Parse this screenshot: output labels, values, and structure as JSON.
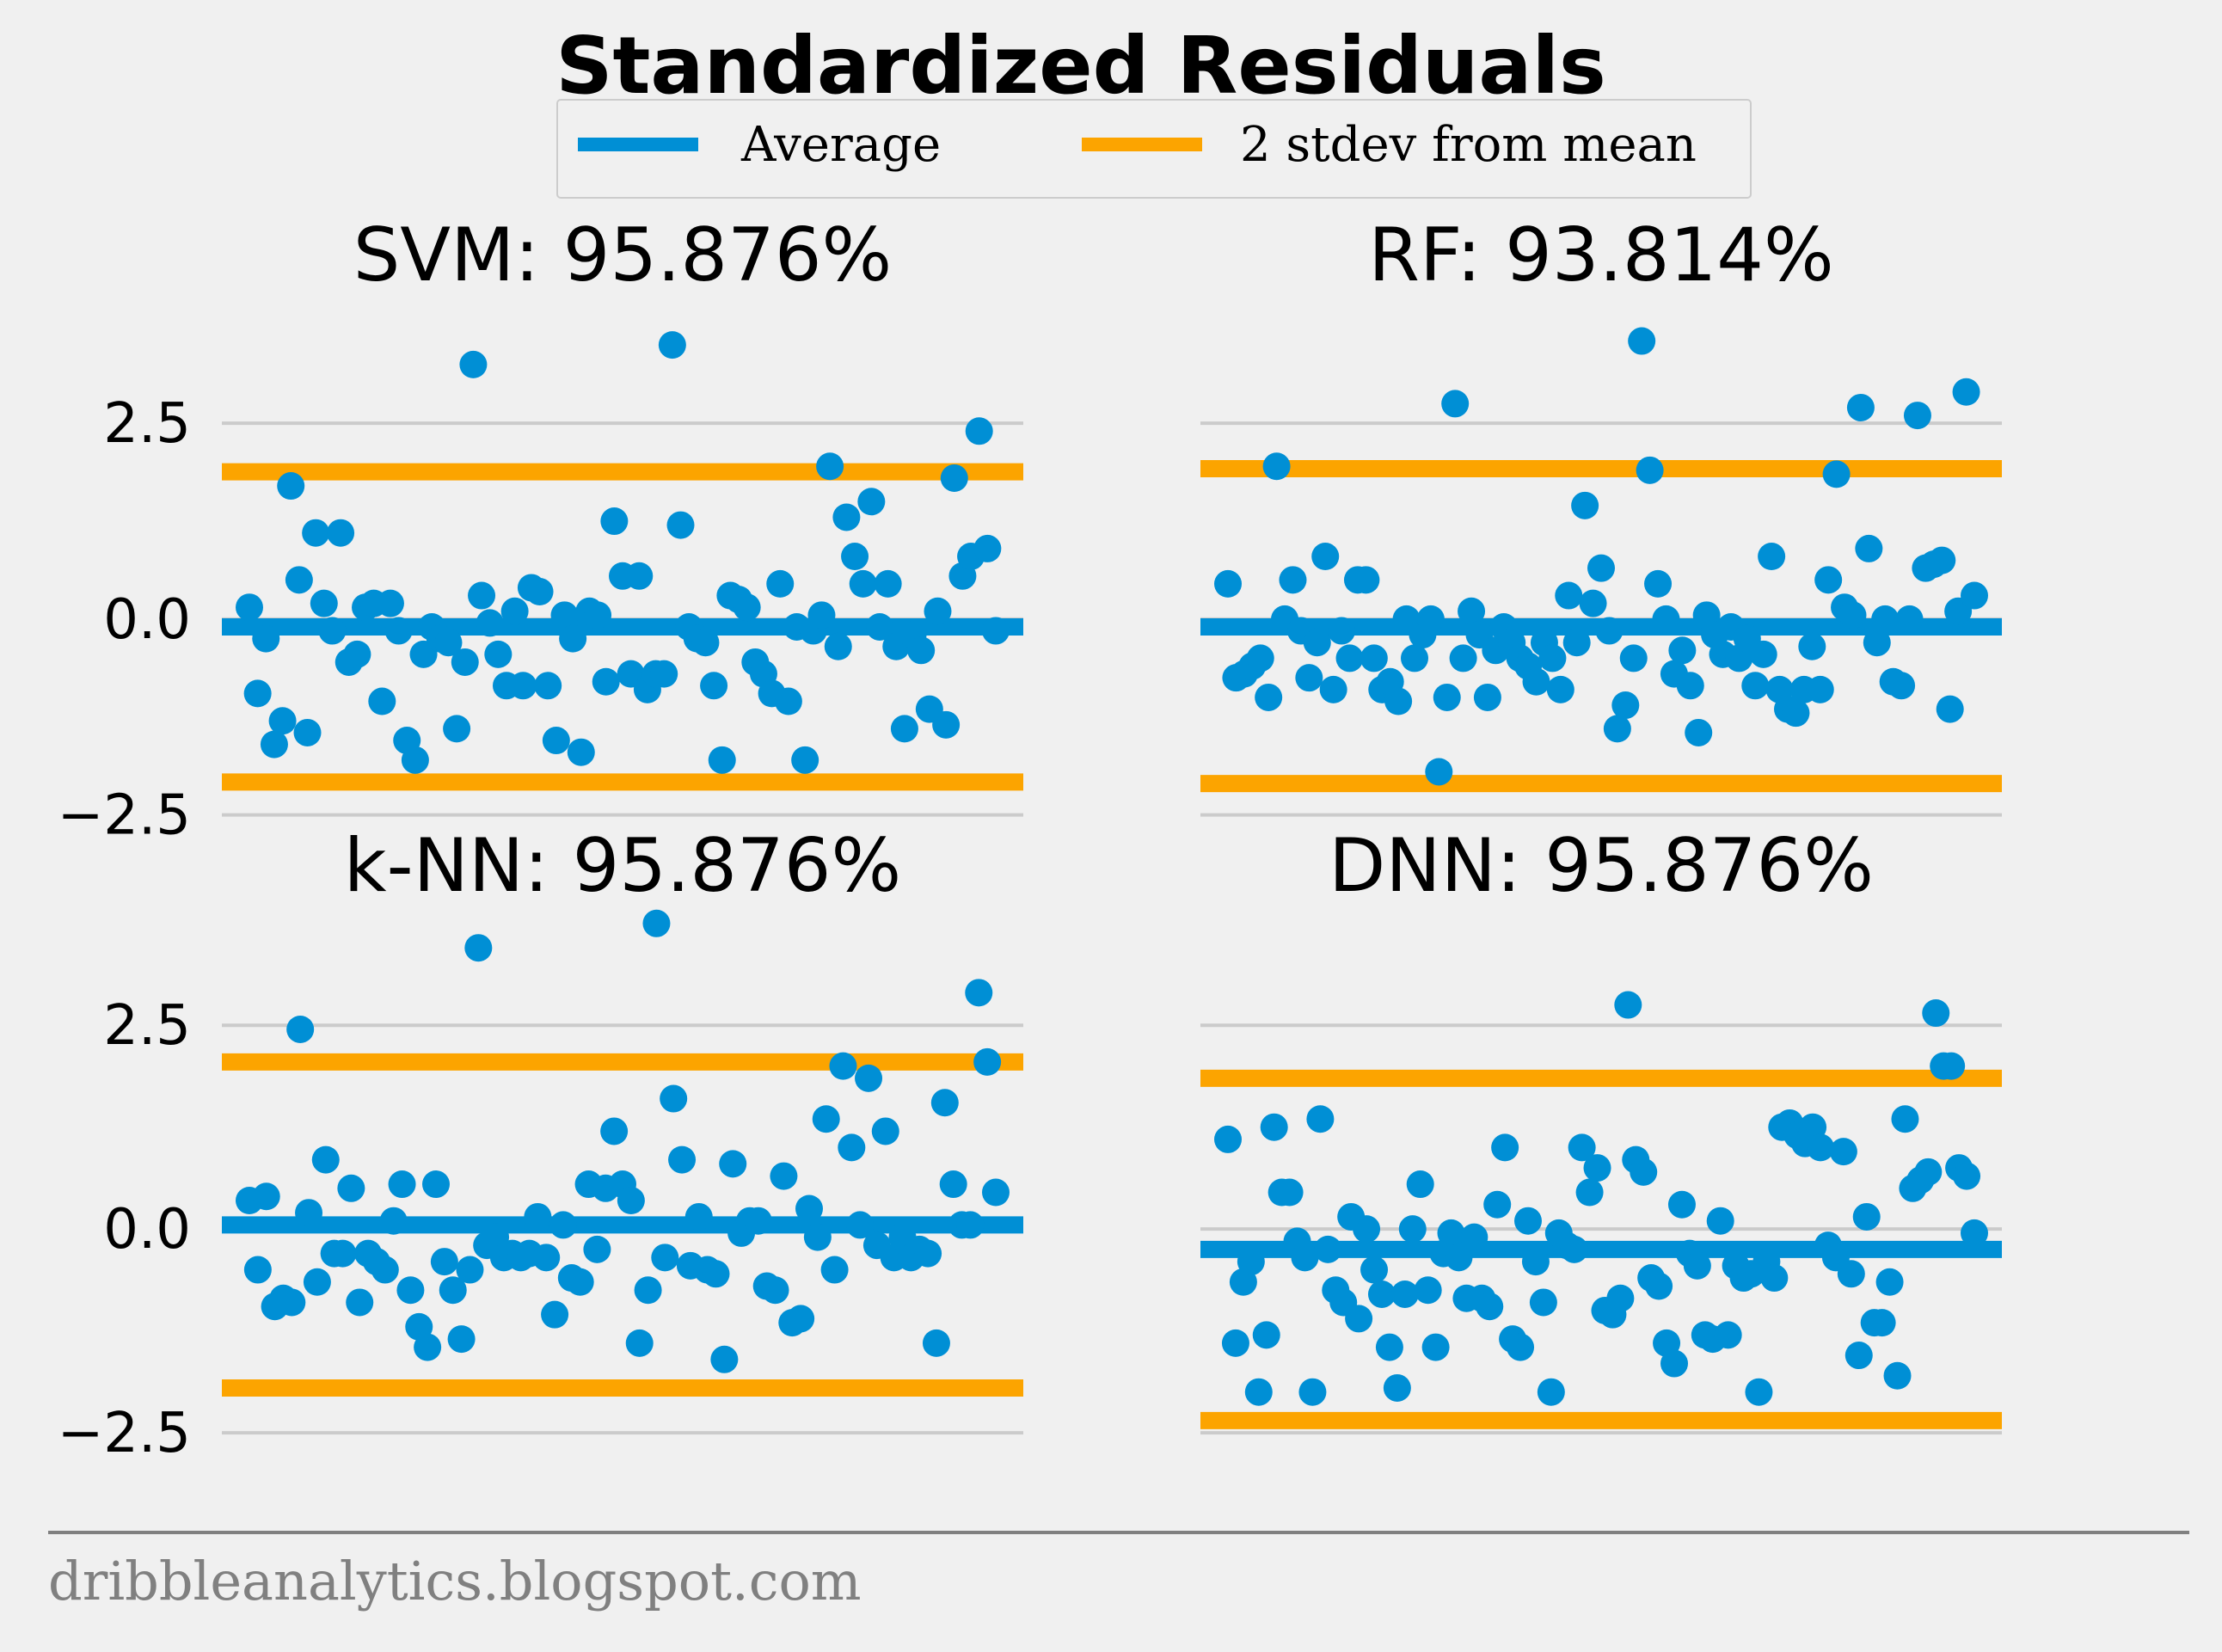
{
  "title": "Standardized Residuals",
  "footer": "dribbleanalytics.blogspot.com",
  "colors": {
    "points": "#008fd5",
    "average": "#008fd5",
    "stdev": "#fca400",
    "grid": "#cbcbcb",
    "background": "#f0f0f0",
    "footer": "#808080"
  },
  "legend": {
    "placement": "top-center",
    "items": [
      {
        "label": "Average",
        "color": "#008fd5"
      },
      {
        "label": "2 stdev from mean",
        "color": "#fca400"
      }
    ]
  },
  "chart_data": [
    {
      "type": "scatter",
      "title": "SVM: 95.876%",
      "ylim": [
        -2.9,
        3.6
      ],
      "yticks": [
        -2.5,
        0.0,
        2.5
      ],
      "ytick_labels": [
        "−2.5",
        "0.0",
        "2.5"
      ],
      "average": -0.1,
      "upper": 1.88,
      "lower": -2.08,
      "y": [
        0.15,
        -0.95,
        -0.25,
        -1.6,
        -1.3,
        1.7,
        0.5,
        -1.45,
        1.1,
        0.2,
        -0.15,
        1.1,
        -0.55,
        -0.45,
        0.15,
        0.2,
        -1.05,
        0.2,
        -0.15,
        -1.55,
        -1.8,
        -0.45,
        -0.1,
        -0.25,
        -0.3,
        -1.4,
        -0.55,
        3.25,
        0.3,
        -0.05,
        -0.45,
        -0.85,
        0.1,
        -0.85,
        0.4,
        0.35,
        -0.85,
        -1.55,
        0.05,
        -0.25,
        -1.7,
        0.1,
        0.05,
        -0.8,
        1.25,
        0.55,
        -0.7,
        0.55,
        -0.9,
        -0.7,
        -0.7,
        3.5,
        1.2,
        -0.1,
        -0.25,
        -0.3,
        -0.85,
        -1.8,
        0.3,
        0.25,
        0.15,
        -0.55,
        -0.7,
        -0.95,
        0.45,
        -1.05,
        -0.1,
        -1.8,
        -0.15,
        0.05,
        1.95,
        -0.35,
        1.3,
        0.8,
        0.45,
        1.5,
        -0.1,
        0.45,
        -0.35,
        -1.4,
        -0.2,
        -0.4,
        -1.15,
        0.1,
        -1.35,
        1.8,
        0.55,
        0.8,
        2.4,
        0.9,
        -0.15
      ]
    },
    {
      "type": "scatter",
      "title": "RF: 93.814%",
      "ylim": [
        -2.9,
        3.6
      ],
      "yticks": [
        -2.5,
        0.0,
        2.5
      ],
      "ytick_labels": [
        "",
        "",
        ""
      ],
      "average": -0.1,
      "upper": 1.92,
      "lower": -2.1,
      "y": [
        0.45,
        -0.75,
        -0.7,
        -0.6,
        -0.5,
        -1.0,
        1.95,
        0.0,
        0.5,
        -0.15,
        -0.75,
        -0.3,
        0.8,
        -0.9,
        -0.15,
        -0.5,
        0.5,
        0.5,
        -0.5,
        -0.9,
        -0.8,
        -1.05,
        0.0,
        -0.5,
        -0.2,
        0.0,
        -1.95,
        -1.0,
        2.75,
        -0.5,
        0.1,
        -0.2,
        -1.0,
        -0.4,
        -0.1,
        -0.3,
        -0.5,
        -0.6,
        -0.8,
        -0.3,
        -0.5,
        -0.9,
        0.3,
        -0.3,
        1.45,
        0.2,
        0.65,
        -0.15,
        -1.4,
        -1.1,
        -0.5,
        3.55,
        1.9,
        0.45,
        0.0,
        -0.7,
        -0.4,
        -0.85,
        -1.45,
        0.05,
        -0.2,
        -0.45,
        -0.1,
        -0.5,
        -0.25,
        -0.85,
        -0.45,
        0.8,
        -0.9,
        -1.15,
        -1.2,
        -0.9,
        -0.35,
        -0.9,
        0.5,
        1.85,
        0.15,
        0.05,
        2.7,
        0.9,
        -0.3,
        0.0,
        -0.8,
        -0.85,
        0.0,
        2.6,
        0.65,
        0.7,
        0.75,
        -1.15,
        0.1,
        2.9,
        0.3
      ]
    },
    {
      "type": "scatter",
      "title": "k-NN: 95.876%",
      "ylim": [
        -2.9,
        3.6
      ],
      "yticks": [
        -2.5,
        0.0,
        2.5
      ],
      "ytick_labels": [
        "−2.5",
        "0.0",
        "2.5"
      ],
      "average": 0.05,
      "upper": 2.05,
      "lower": -1.95,
      "y": [
        0.35,
        -0.5,
        0.4,
        -0.95,
        -0.85,
        -0.9,
        2.45,
        0.2,
        -0.65,
        0.85,
        -0.3,
        -0.3,
        0.5,
        -0.9,
        -0.3,
        -0.4,
        -0.5,
        0.1,
        0.55,
        -0.75,
        -1.2,
        -1.45,
        0.55,
        -0.4,
        -0.75,
        -1.35,
        -0.5,
        3.45,
        -0.2,
        -0.1,
        -0.35,
        -0.3,
        -0.35,
        -0.3,
        0.15,
        -0.35,
        -1.05,
        0.05,
        -0.6,
        -0.65,
        0.55,
        -0.25,
        0.5,
        1.2,
        0.55,
        0.35,
        -1.4,
        -0.75,
        3.75,
        -0.35,
        1.6,
        0.85,
        -0.45,
        0.15,
        -0.5,
        -0.55,
        -1.6,
        0.8,
        -0.05,
        0.1,
        0.1,
        -0.7,
        -0.75,
        0.65,
        -1.15,
        -1.1,
        0.25,
        -0.1,
        1.35,
        -0.5,
        2.0,
        1.0,
        0.05,
        1.85,
        -0.2,
        1.2,
        -0.35,
        -0.1,
        -0.35,
        -0.25,
        -0.3,
        -1.4,
        1.55,
        0.55,
        0.05,
        0.05,
        2.9,
        2.05,
        0.45
      ]
    },
    {
      "type": "scatter",
      "title": "DNN: 95.876%",
      "ylim": [
        -2.9,
        3.6
      ],
      "yticks": [
        -2.5,
        0.0,
        2.5
      ],
      "ytick_labels": [
        "",
        "",
        ""
      ],
      "average": -0.25,
      "upper": 1.85,
      "lower": -2.35,
      "y": [
        1.1,
        -1.4,
        -0.65,
        -0.4,
        -2.0,
        -1.3,
        1.25,
        0.45,
        0.45,
        -0.15,
        -0.35,
        -2.0,
        1.35,
        -0.25,
        -0.75,
        -0.9,
        0.15,
        -1.1,
        0.0,
        -0.5,
        -0.8,
        -1.45,
        -1.95,
        -0.8,
        0.0,
        0.55,
        -0.75,
        -1.45,
        -0.3,
        -0.05,
        -0.35,
        -0.85,
        -0.1,
        -0.85,
        -0.95,
        0.3,
        1.0,
        -1.35,
        -1.45,
        0.1,
        -0.4,
        -0.9,
        -2.0,
        -0.05,
        -0.2,
        -0.25,
        1.0,
        0.45,
        0.75,
        -1.0,
        -1.05,
        -0.85,
        2.75,
        0.85,
        0.7,
        -0.6,
        -0.7,
        -1.4,
        -1.65,
        0.3,
        -0.3,
        -0.45,
        -1.3,
        -1.35,
        0.1,
        -1.3,
        -0.45,
        -0.6,
        -0.55,
        -2.0,
        -0.4,
        -0.6,
        1.25,
        1.3,
        1.15,
        1.05,
        1.25,
        1.0,
        -0.2,
        -0.35,
        0.95,
        -0.55,
        -1.55,
        0.15,
        -1.15,
        -1.15,
        -0.65,
        -1.8,
        1.35,
        0.5,
        0.6,
        0.7,
        2.65,
        2.0,
        2.0,
        0.75,
        0.65,
        -0.05
      ]
    }
  ]
}
